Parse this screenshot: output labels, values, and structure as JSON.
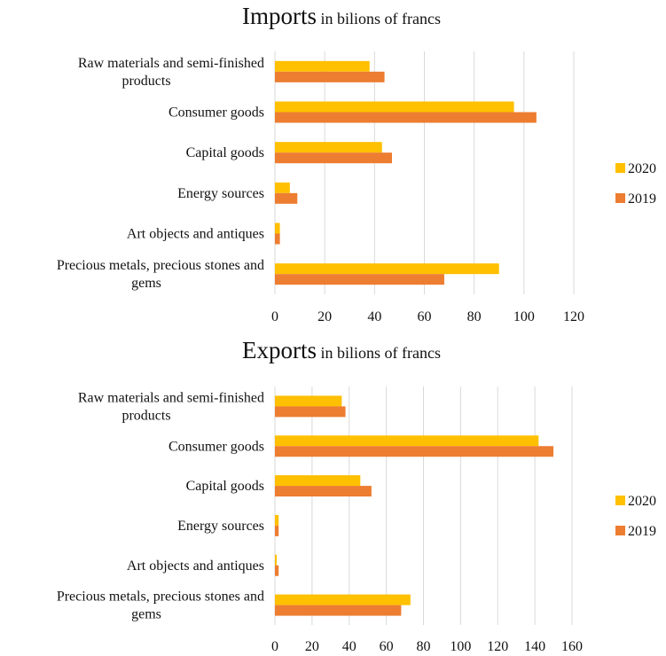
{
  "colors": {
    "2020": "#FFC000",
    "2019": "#ED7D31",
    "grid": "#D9D9D9"
  },
  "legend": [
    "2020",
    "2019"
  ],
  "chart_data": [
    {
      "type": "bar",
      "orientation": "horizontal",
      "title": "Imports",
      "subtitle": "in bilions of francs",
      "categories": [
        [
          "Raw materials and semi-finished",
          "products"
        ],
        [
          "Consumer goods"
        ],
        [
          "Capital goods"
        ],
        [
          "Energy sources"
        ],
        [
          "Art objects and antiques"
        ],
        [
          "Precious metals, precious stones and",
          "gems"
        ]
      ],
      "series": [
        {
          "name": "2020",
          "values": [
            38,
            96,
            43,
            6,
            2,
            90
          ]
        },
        {
          "name": "2019",
          "values": [
            44,
            105,
            47,
            9,
            2,
            68
          ]
        }
      ],
      "xlim": [
        0,
        120
      ],
      "xticks": [
        "0",
        "20",
        "40",
        "60",
        "80",
        "100",
        "120"
      ],
      "grid": true,
      "legend_position": "right"
    },
    {
      "type": "bar",
      "orientation": "horizontal",
      "title": "Exports",
      "subtitle": "in bilions of francs",
      "categories": [
        [
          "Raw materials and semi-finished",
          "products"
        ],
        [
          "Consumer goods"
        ],
        [
          "Capital goods"
        ],
        [
          "Energy sources"
        ],
        [
          "Art objects and antiques"
        ],
        [
          "Precious metals, precious stones and",
          "gems"
        ]
      ],
      "series": [
        {
          "name": "2020",
          "values": [
            36,
            142,
            46,
            2,
            1,
            73
          ]
        },
        {
          "name": "2019",
          "values": [
            38,
            150,
            52,
            2,
            2,
            68
          ]
        }
      ],
      "xlim": [
        0,
        160
      ],
      "xticks": [
        "0",
        "20",
        "40",
        "60",
        "80",
        "100",
        "120",
        "140",
        "160"
      ],
      "grid": true,
      "legend_position": "right"
    }
  ]
}
